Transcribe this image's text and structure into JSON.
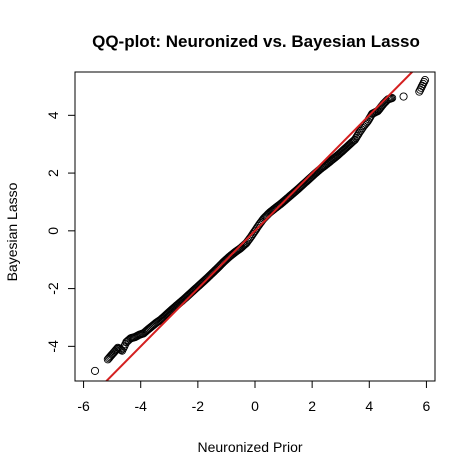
{
  "chart_data": {
    "type": "scatter",
    "title": "QQ-plot: Neuronized vs. Bayesian Lasso",
    "xlabel": "Neuronized Prior",
    "ylabel": "Bayesian Lasso",
    "xlim": [
      -6.3,
      6.3
    ],
    "ylim": [
      -5.2,
      5.5
    ],
    "x_ticks": [
      -6,
      -4,
      -2,
      0,
      2,
      4,
      6
    ],
    "y_ticks": [
      -4,
      -2,
      0,
      2,
      4
    ],
    "x_tick_labels": [
      "-6",
      "-4",
      "-2",
      "0",
      "2",
      "4",
      "6"
    ],
    "y_tick_labels": [
      "-4",
      "-2",
      "0",
      "2",
      "4"
    ],
    "grid": false,
    "colors": {
      "points": "#000000",
      "reference_line": "#d42020"
    },
    "reference_line": {
      "slope": 1.0,
      "intercept": 0.0
    },
    "quantile_points": [
      {
        "x": -5.6,
        "y": -4.85
      },
      {
        "x": -5.15,
        "y": -4.45
      },
      {
        "x": -4.95,
        "y": -4.22
      },
      {
        "x": -4.8,
        "y": -4.05
      },
      {
        "x": -4.65,
        "y": -4.15
      },
      {
        "x": -4.5,
        "y": -3.85
      },
      {
        "x": -4.35,
        "y": -3.72
      },
      {
        "x": -4.2,
        "y": -3.68
      },
      {
        "x": -4.05,
        "y": -3.6
      },
      {
        "x": -3.9,
        "y": -3.55
      },
      {
        "x": -3.75,
        "y": -3.42
      },
      {
        "x": -3.6,
        "y": -3.3
      },
      {
        "x": -3.45,
        "y": -3.18
      },
      {
        "x": -3.3,
        "y": -3.08
      },
      {
        "x": -3.1,
        "y": -2.9
      },
      {
        "x": -2.9,
        "y": -2.72
      },
      {
        "x": -2.7,
        "y": -2.55
      },
      {
        "x": -2.5,
        "y": -2.38
      },
      {
        "x": -2.3,
        "y": -2.2
      },
      {
        "x": -2.1,
        "y": -2.02
      },
      {
        "x": -1.9,
        "y": -1.84
      },
      {
        "x": -1.7,
        "y": -1.66
      },
      {
        "x": -1.5,
        "y": -1.47
      },
      {
        "x": -1.3,
        "y": -1.28
      },
      {
        "x": -1.1,
        "y": -1.08
      },
      {
        "x": -0.9,
        "y": -0.9
      },
      {
        "x": -0.7,
        "y": -0.74
      },
      {
        "x": -0.5,
        "y": -0.6
      },
      {
        "x": -0.3,
        "y": -0.42
      },
      {
        "x": -0.15,
        "y": -0.22
      },
      {
        "x": 0.0,
        "y": 0.0
      },
      {
        "x": 0.15,
        "y": 0.22
      },
      {
        "x": 0.3,
        "y": 0.42
      },
      {
        "x": 0.5,
        "y": 0.62
      },
      {
        "x": 0.7,
        "y": 0.78
      },
      {
        "x": 0.9,
        "y": 0.93
      },
      {
        "x": 1.1,
        "y": 1.1
      },
      {
        "x": 1.3,
        "y": 1.27
      },
      {
        "x": 1.5,
        "y": 1.44
      },
      {
        "x": 1.7,
        "y": 1.62
      },
      {
        "x": 1.9,
        "y": 1.8
      },
      {
        "x": 2.1,
        "y": 1.98
      },
      {
        "x": 2.3,
        "y": 2.15
      },
      {
        "x": 2.5,
        "y": 2.3
      },
      {
        "x": 2.7,
        "y": 2.46
      },
      {
        "x": 2.9,
        "y": 2.62
      },
      {
        "x": 3.1,
        "y": 2.8
      },
      {
        "x": 3.3,
        "y": 2.98
      },
      {
        "x": 3.5,
        "y": 3.16
      },
      {
        "x": 3.65,
        "y": 3.4
      },
      {
        "x": 3.8,
        "y": 3.62
      },
      {
        "x": 3.95,
        "y": 3.8
      },
      {
        "x": 4.1,
        "y": 4.05
      },
      {
        "x": 4.3,
        "y": 4.15
      },
      {
        "x": 4.5,
        "y": 4.4
      },
      {
        "x": 4.65,
        "y": 4.55
      },
      {
        "x": 4.8,
        "y": 4.6
      },
      {
        "x": 5.2,
        "y": 4.65
      },
      {
        "x": 5.75,
        "y": 4.82
      },
      {
        "x": 5.95,
        "y": 5.22
      }
    ]
  }
}
